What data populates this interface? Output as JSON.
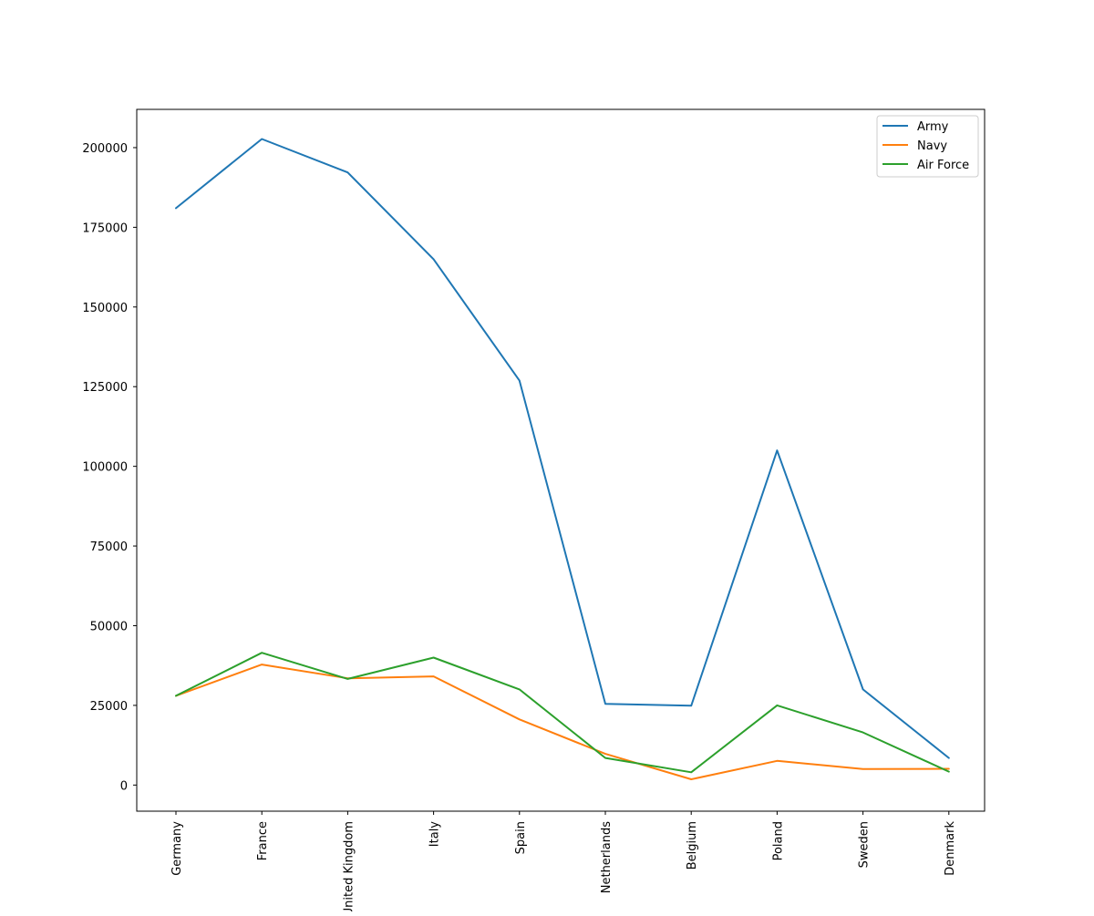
{
  "chart_data": {
    "type": "line",
    "title": "",
    "xlabel": "",
    "ylabel": "",
    "categories": [
      "Germany",
      "France",
      "United Kingdom",
      "Italy",
      "Spain",
      "Netherlands",
      "Belgium",
      "Poland",
      "Sweden",
      "Denmark"
    ],
    "ylim": [
      -8200,
      212000
    ],
    "yticks": [
      0,
      25000,
      50000,
      75000,
      100000,
      125000,
      150000,
      175000,
      200000
    ],
    "ytick_labels": [
      "0",
      "25000",
      "50000",
      "75000",
      "100000",
      "125000",
      "150000",
      "175000",
      "200000"
    ],
    "grid": false,
    "legend_position": "top-right",
    "series": [
      {
        "name": "Army",
        "color": "#1f77b4",
        "values": [
          181000,
          202700,
          192200,
          165000,
          126900,
          25500,
          24900,
          105000,
          30000,
          8500
        ]
      },
      {
        "name": "Navy",
        "color": "#ff7f0e",
        "values": [
          28000,
          37800,
          33500,
          34100,
          20600,
          9800,
          1800,
          7600,
          5000,
          5100
        ]
      },
      {
        "name": "Air Force",
        "color": "#2ca02c",
        "values": [
          28000,
          41500,
          33300,
          40000,
          30000,
          8500,
          4000,
          25000,
          16500,
          4200
        ]
      }
    ]
  }
}
